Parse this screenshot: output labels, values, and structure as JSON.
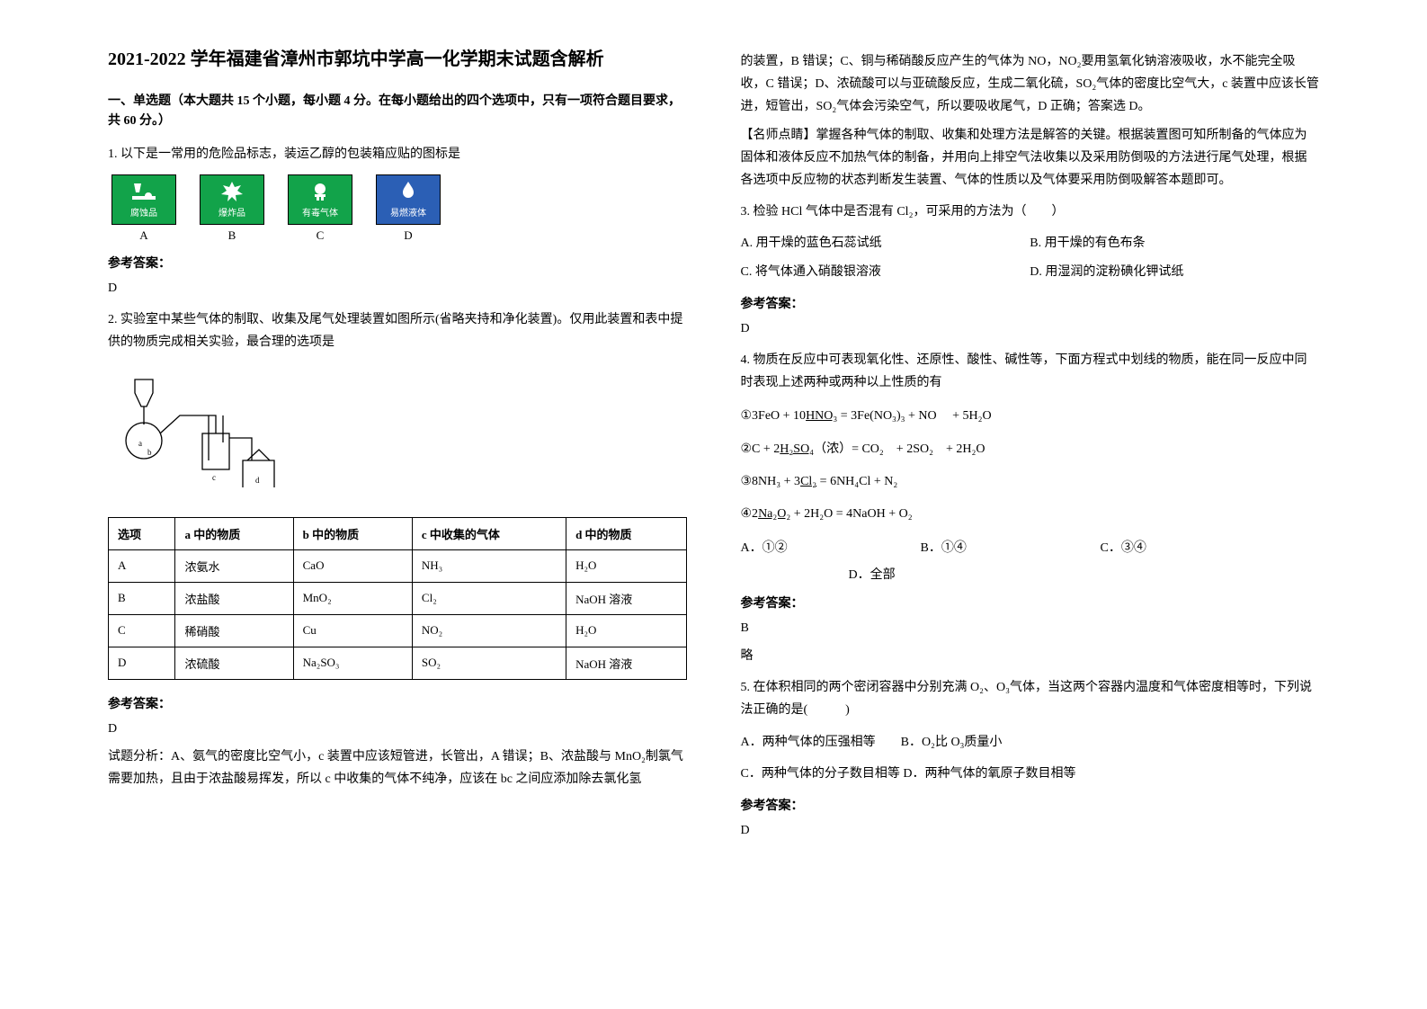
{
  "title": "2021-2022 学年福建省漳州市郭坑中学高一化学期末试题含解析",
  "section1": "一、单选题（本大题共 15 个小题，每小题 4 分。在每小题给出的四个选项中，只有一项符合题目要求，共 60 分。）",
  "q1": {
    "text": "1. 以下是一常用的危险品标志，装运乙醇的包装箱应贴的图标是",
    "tiles": [
      {
        "label": "腐蚀品",
        "letter": "A",
        "bg": "green"
      },
      {
        "label": "爆炸品",
        "letter": "B",
        "bg": "green"
      },
      {
        "label": "有毒气体",
        "letter": "C",
        "bg": "green"
      },
      {
        "label": "易燃液体",
        "letter": "D",
        "bg": "blue"
      }
    ],
    "ansLabel": "参考答案：",
    "ans": "D"
  },
  "q2": {
    "text": "2. 实验室中某些气体的制取、收集及尾气处理装置如图所示(省略夹持和净化装置)。仅用此装置和表中提供的物质完成相关实验，最合理的选项是",
    "table": {
      "headers": [
        "选项",
        "a 中的物质",
        "b 中的物质",
        "c 中收集的气体",
        "d 中的物质"
      ],
      "rows": [
        [
          "A",
          "浓氨水",
          "CaO",
          "NH₃",
          "H₂O"
        ],
        [
          "B",
          "浓盐酸",
          "MnO₂",
          "Cl₂",
          "NaOH 溶液"
        ],
        [
          "C",
          "稀硝酸",
          "Cu",
          "NO₂",
          "H₂O"
        ],
        [
          "D",
          "浓硫酸",
          "Na₂SO₃",
          "SO₂",
          "NaOH 溶液"
        ]
      ]
    },
    "ansLabel": "参考答案：",
    "ans": "D",
    "explain": "试题分析：A、氨气的密度比空气小，c 装置中应该短管进，长管出，A 错误；B、浓盐酸与 MnO₂制氯气需要加热，且由于浓盐酸易挥发，所以 c 中收集的气体不纯净，应该在 bc 之间应添加除去氯化氢"
  },
  "right1": "的装置，B 错误；C、铜与稀硝酸反应产生的气体为 NO，NO₂要用氢氧化钠溶液吸收，水不能完全吸收，C 错误；D、浓硫酸可以与亚硫酸反应，生成二氧化硫，SO₂气体的密度比空气大，c 装置中应该长管进，短管出，SO₂气体会污染空气，所以要吸收尾气，D 正确；答案选 D。",
  "right2": "【名师点睛】掌握各种气体的制取、收集和处理方法是解答的关键。根据装置图可知所制备的气体应为固体和液体反应不加热气体的制备，并用向上排空气法收集以及采用防倒吸的方法进行尾气处理，根据各选项中反应物的状态判断发生装置、气体的性质以及气体要采用防倒吸解答本题即可。",
  "q3": {
    "text": "3. 检验 HCl 气体中是否混有 Cl₂，可采用的方法为（　　）",
    "opts": [
      {
        "k": "A.",
        "v": "用干燥的蓝色石蕊试纸"
      },
      {
        "k": "B.",
        "v": "用干燥的有色布条"
      },
      {
        "k": "C.",
        "v": "将气体通入硝酸银溶液"
      },
      {
        "k": "D.",
        "v": "用湿润的淀粉碘化钾试纸"
      }
    ],
    "ansLabel": "参考答案：",
    "ans": "D"
  },
  "q4": {
    "text": "4. 物质在反应中可表现氧化性、还原性、酸性、碱性等，下面方程式中划线的物质，能在同一反应中同时表现上述两种或两种以上性质的有",
    "eqs": [
      "①3FeO + 10<span class='u'>HNO₃</span> = 3Fe(NO₃)₃ + NO　 + 5H₂O",
      "②C + 2<span class='u'>H₂SO₄</span>（浓）= CO₂　+ 2SO₂　+ 2H₂O",
      "③8NH₃ + 3<span class='u'>Cl₂</span> = 6NH₄Cl + N₂",
      "④2<span class='u'>Na₂O₂</span> + 2H₂O = 4NaOH + O₂"
    ],
    "opts": [
      "A．①②",
      "B．①④",
      "C．③④",
      "D．全部"
    ],
    "ansLabel": "参考答案：",
    "ans": "B",
    "brief": "略"
  },
  "q5": {
    "text": "5. 在体积相同的两个密闭容器中分别充满 O₂、O₃气体，当这两个容器内温度和气体密度相等时，下列说法正确的是(　　　)",
    "opts": [
      "A．两种气体的压强相等　　B．O₂比 O₃质量小",
      "C．两种气体的分子数目相等  D．两种气体的氧原子数目相等"
    ],
    "ansLabel": "参考答案：",
    "ans": "D"
  }
}
